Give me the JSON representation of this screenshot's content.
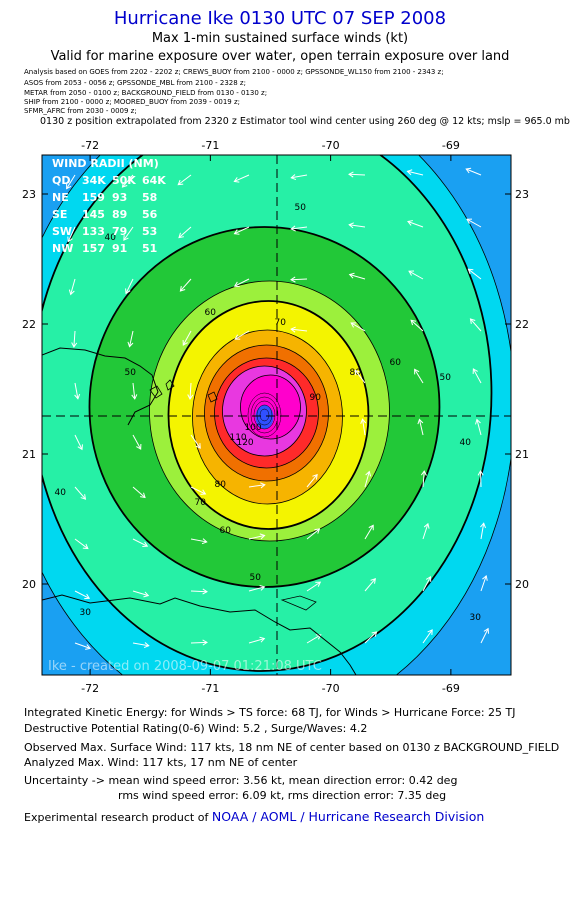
{
  "header": {
    "title": "Hurricane Ike 0130 UTC 07 SEP 2008",
    "subtitle1": "Max 1-min sustained surface winds (kt)",
    "subtitle2": "Valid for marine exposure over water, open terrain exposure over land"
  },
  "analysis_sources": [
    "Analysis based on  GOES from  2202 - 2202 z;   CREWS_BUOY from  2100 - 0000 z;  GPSSONDE_WL150 from  2100 - 2343 z;",
    "ASOS from  2053 - 0056 z;   GPSSONDE_MBL from  2100 - 2328 z;",
    "METAR from  2050 - 0100 z;   BACKGROUND_FIELD from  0130 - 0130 z;",
    "SHIP from  2100 - 0000 z;   MOORED_BUOY from  2039 - 0019 z;",
    "SFMR_AFRC from  2030 - 0009 z;"
  ],
  "position_note": "0130 z position extrapolated from 2320 z Estimator tool wind center using 260 deg @ 12 kts;  mslp = 965.0 mb",
  "wind_radii": {
    "title": "WIND RADII (NM)",
    "header": [
      "QD",
      "34K",
      "50K",
      "64K"
    ],
    "rows": [
      [
        "NE",
        "159",
        "93",
        "58"
      ],
      [
        "SE",
        "145",
        "89",
        "56"
      ],
      [
        "SW",
        "133",
        "79",
        "53"
      ],
      [
        "NW",
        "157",
        "91",
        "51"
      ]
    ]
  },
  "credit": "Ike - created on 2008-09-07 01:21:08 UTC",
  "chart_data": {
    "type": "contour",
    "quantity": "max 1-min sustained surface wind (kt)",
    "x_ticks": [
      "-72",
      "-71",
      "-70",
      "-69"
    ],
    "y_ticks": [
      "23",
      "22",
      "21",
      "20"
    ],
    "xlim": [
      -72.4,
      -68.5
    ],
    "ylim": [
      19.3,
      23.3
    ],
    "center": {
      "lon": -70.55,
      "lat": 21.3
    },
    "contour_levels": [
      30,
      40,
      50,
      60,
      70,
      80,
      90,
      100,
      110
    ],
    "labeled_contours": [
      "30",
      "40",
      "50",
      "60",
      "70",
      "80",
      "90",
      "100",
      "110",
      "120"
    ],
    "max_wind_kt": 117,
    "colors": {
      "lt30": "#1aa0f2",
      "30": "#00d8f0",
      "40": "#26f0a6",
      "50": "#22c838",
      "60": "#9cf03c",
      "70": "#f4f400",
      "80": "#f6b400",
      "90": "#f07000",
      "100": "#ff2a2a",
      "110": "#e838e0",
      "120": "#ff00cc",
      "eye": "#3050ff"
    }
  },
  "footer": {
    "ike_line": "Integrated Kinetic Energy:  for Winds > TS force: 68 TJ,  for Winds > Hurricane Force: 25 TJ",
    "dp_line": "Destructive Potential Rating(0-6)   Wind: 5.2 , Surge/Waves: 4.2",
    "obs_line": "Observed Max. Surface Wind: 117 kts, 18 nm NE of center based on 0130 z BACKGROUND_FIELD",
    "analyzed_line": "Analyzed Max. Wind: 117 kts, 17 nm NE of center",
    "uncert_line1": "Uncertainty -> mean wind speed error: 3.56 kt,   mean direction error: 0.42 deg",
    "uncert_line2": "rms wind speed error: 6.09 kt,   rms direction error: 7.35 deg",
    "product_prefix": "Experimental research product of",
    "product_org": "NOAA / AOML / Hurricane Research Division"
  }
}
